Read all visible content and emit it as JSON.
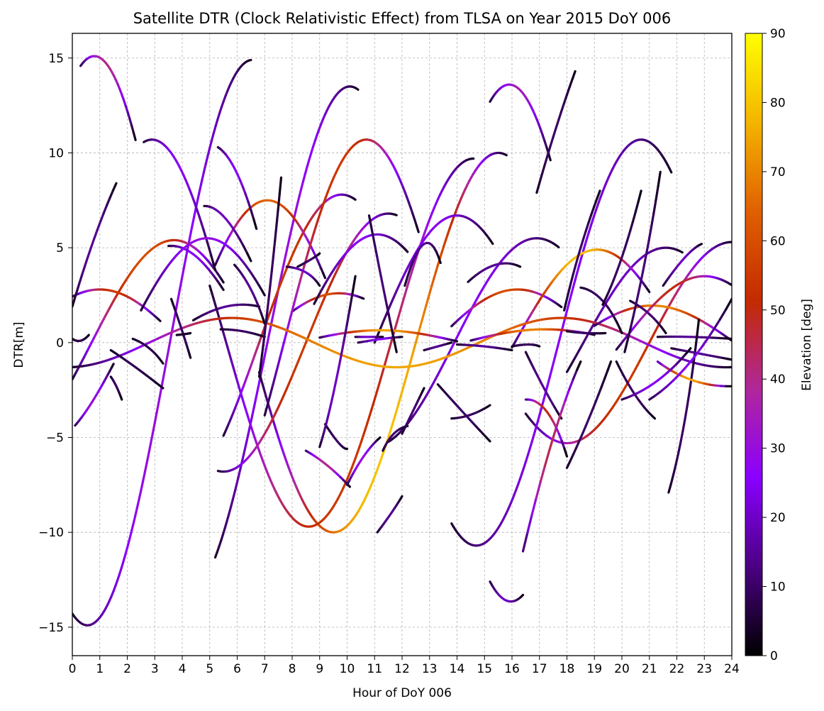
{
  "chart_data": {
    "type": "scatter",
    "title": "Satellite DTR (Clock Relativistic Effect) from TLSA on Year 2015 DoY 006",
    "xlabel": "Hour of DoY 006",
    "ylabel": "DTR[m]",
    "xlim": [
      0,
      24
    ],
    "ylim": [
      -16.5,
      16.3
    ],
    "xticks": [
      0,
      1,
      2,
      3,
      4,
      5,
      6,
      7,
      8,
      9,
      10,
      11,
      12,
      13,
      14,
      15,
      16,
      17,
      18,
      19,
      20,
      21,
      22,
      23,
      24
    ],
    "yticks": [
      -15,
      -10,
      -5,
      0,
      5,
      10,
      15
    ],
    "ytick_labels": [
      "−15",
      "−10",
      "−5",
      "0",
      "5",
      "10",
      "15"
    ],
    "grid": true,
    "colorbar": {
      "label": "Elevation [deg]",
      "range": [
        0,
        90
      ],
      "ticks": [
        0,
        10,
        20,
        30,
        40,
        50,
        60,
        70,
        80,
        90
      ],
      "colormap": "gnuplot",
      "stops": [
        "#000000",
        "#4b0082",
        "#8a00ff",
        "#b0279a",
        "#c42a00",
        "#e06000",
        "#f4b400",
        "#ffff00"
      ]
    },
    "tracks": [
      {
        "amp": 5.4,
        "t0": 4.9,
        "h": 0.0,
        "span": [
          0.1,
          1.5
        ],
        "emax": 30
      },
      {
        "amp": 14.9,
        "t0": 6.55,
        "h": 0.0,
        "span": [
          0.0,
          6.5
        ],
        "emax": 30
      },
      {
        "amp": 2.0,
        "t0": 6.2,
        "h": 0.0,
        "span": [
          4.4,
          6.8
        ],
        "emax": 15
      },
      {
        "amp": 13.5,
        "t0": 10.1,
        "h": 0.0,
        "span": [
          5.2,
          10.4
        ],
        "emax": 30
      },
      {
        "amp": 10.0,
        "t0": 15.5,
        "h": 0.0,
        "span": [
          6.8,
          15.8
        ],
        "emax": 80
      },
      {
        "amp": 9.7,
        "t0": 14.6,
        "h": 0.0,
        "span": [
          5.0,
          14.6
        ],
        "emax": 55
      },
      {
        "amp": 6.8,
        "t0": 11.5,
        "h": 0.0,
        "span": [
          5.3,
          11.8
        ],
        "emax": 55
      },
      {
        "amp": 6.7,
        "t0": 14.0,
        "h": 0.0,
        "span": [
          11.0,
          15.3
        ],
        "emax": 25
      },
      {
        "amp": 5.5,
        "t0": 16.9,
        "h": 0.0,
        "span": [
          11.5,
          17.7
        ],
        "emax": 25
      },
      {
        "amp": 5.3,
        "t0": 24.0,
        "h": 0.0,
        "span": [
          16.5,
          24.0
        ],
        "emax": 55
      },
      {
        "amp": 10.7,
        "t0": 20.7,
        "h": 0.0,
        "span": [
          13.8,
          21.8
        ],
        "emax": 25
      },
      {
        "amp": 5.0,
        "t0": 21.6,
        "h": 0.0,
        "span": [
          18.0,
          22.2
        ],
        "emax": 20
      },
      {
        "amp": 2.6,
        "t0": 9.7,
        "h": 0.0,
        "span": [
          8.0,
          10.6
        ],
        "emax": 60
      },
      {
        "amp": 7.8,
        "t0": 9.8,
        "h": 0.0,
        "span": [
          5.5,
          10.3
        ],
        "emax": 55
      },
      {
        "amp": 5.4,
        "t0": 3.7,
        "h": 0.0,
        "span": [
          0.0,
          5.5
        ],
        "emax": 60
      },
      {
        "amp": 2.8,
        "t0": 1.0,
        "h": 0.0,
        "span": [
          0.0,
          3.2
        ],
        "emax": 55
      },
      {
        "amp": 7.5,
        "t0": 7.1,
        "h": 0.0,
        "span": [
          5.2,
          9.2
        ],
        "emax": 65
      },
      {
        "amp": 5.7,
        "t0": 11.1,
        "h": 0.0,
        "span": [
          8.8,
          12.2
        ],
        "emax": 25
      },
      {
        "amp": 10.7,
        "t0": 10.7,
        "h": 0.0,
        "span": [
          7.0,
          12.6
        ],
        "emax": 55
      },
      {
        "amp": 13.6,
        "t0": 15.9,
        "h": 0.0,
        "span": [
          15.2,
          17.4
        ],
        "emax": 35
      },
      {
        "amp": 2.8,
        "t0": 16.2,
        "h": 0.0,
        "span": [
          13.8,
          17.8
        ],
        "emax": 60
      },
      {
        "amp": 4.9,
        "t0": 19.1,
        "h": 0.0,
        "span": [
          16.0,
          21.0
        ],
        "emax": 80
      },
      {
        "amp": 15.1,
        "t0": 0.8,
        "h": 0.0,
        "span": [
          0.3,
          2.3
        ],
        "emax": 40
      },
      {
        "amp": 10.7,
        "t0": 2.9,
        "h": 0.0,
        "span": [
          2.6,
          5.2
        ],
        "emax": 25
      },
      {
        "amp": 5.1,
        "t0": 3.6,
        "h": 0.0,
        "span": [
          3.5,
          5.5
        ],
        "emax": 25
      },
      {
        "amp": 1.3,
        "t0": 5.8,
        "h": 0.0,
        "span": [
          0.0,
          24.0
        ],
        "emax": 75
      },
      {
        "amp": 0.65,
        "t0": 11.2,
        "h": 0.0,
        "span": [
          9.0,
          14.0
        ],
        "emax": 75
      },
      {
        "amp": 0.7,
        "t0": 17.2,
        "h": 0.0,
        "span": [
          14.5,
          19.0
        ],
        "emax": 70
      },
      {
        "amp": 1.95,
        "t0": 21.1,
        "h": 0.0,
        "span": [
          19.0,
          24.0
        ],
        "emax": 70
      },
      {
        "amp": 3.5,
        "t0": 23.0,
        "h": 0.0,
        "span": [
          19.8,
          24.0
        ],
        "emax": 50
      },
      {
        "amp": 5.5,
        "t0": 4.9,
        "h": 0.0,
        "span": [
          2.5,
          7.0
        ],
        "emax": 30
      }
    ],
    "segments": [
      {
        "x": [
          0.0,
          0.3,
          0.6
        ],
        "y": [
          0.2,
          0.1,
          0.4
        ],
        "e": 8
      },
      {
        "x": [
          0.0,
          0.8,
          1.6
        ],
        "y": [
          1.9,
          5.5,
          8.4
        ],
        "e": 15
      },
      {
        "x": [
          1.4,
          2.3,
          3.3
        ],
        "y": [
          -0.4,
          -1.3,
          -2.4
        ],
        "e": 8
      },
      {
        "x": [
          1.4,
          1.6,
          1.8
        ],
        "y": [
          -1.8,
          -2.3,
          -3.0
        ],
        "e": 10
      },
      {
        "x": [
          2.2,
          2.8,
          3.3
        ],
        "y": [
          0.2,
          -0.3,
          -1.1
        ],
        "e": 8
      },
      {
        "x": [
          3.6,
          4.0,
          4.3
        ],
        "y": [
          2.3,
          0.6,
          -0.8
        ],
        "e": 10
      },
      {
        "x": [
          3.8,
          4.1,
          4.3
        ],
        "y": [
          0.4,
          0.45,
          0.5
        ],
        "e": 5
      },
      {
        "x": [
          4.8,
          5.6,
          6.5
        ],
        "y": [
          7.2,
          6.5,
          4.3
        ],
        "e": 20
      },
      {
        "x": [
          5.3,
          6.0,
          6.7
        ],
        "y": [
          10.3,
          8.9,
          6.0
        ],
        "e": 25
      },
      {
        "x": [
          5.4,
          6.2,
          7.0
        ],
        "y": [
          0.7,
          0.6,
          0.3
        ],
        "e": 10
      },
      {
        "x": [
          5.9,
          6.5,
          7.0
        ],
        "y": [
          4.1,
          2.8,
          1.0
        ],
        "e": 15
      },
      {
        "x": [
          6.8,
          7.2,
          7.6
        ],
        "y": [
          -1.8,
          3.0,
          8.7
        ],
        "e": 10
      },
      {
        "x": [
          8.2,
          8.7,
          9.0
        ],
        "y": [
          4.0,
          4.4,
          4.7
        ],
        "e": 10
      },
      {
        "x": [
          7.8,
          8.5,
          9.0
        ],
        "y": [
          4.0,
          3.7,
          3.0
        ],
        "e": 20
      },
      {
        "x": [
          9.2,
          9.7,
          10.0
        ],
        "y": [
          -4.3,
          -5.3,
          -5.6
        ],
        "e": 10
      },
      {
        "x": [
          9.0,
          9.6,
          10.3
        ],
        "y": [
          -5.5,
          -2.0,
          3.5
        ],
        "e": 20
      },
      {
        "x": [
          10.3,
          10.8,
          11.3
        ],
        "y": [
          0.3,
          0.3,
          0.3
        ],
        "e": 22
      },
      {
        "x": [
          10.4,
          11.3,
          12.0
        ],
        "y": [
          0.0,
          0.2,
          0.3
        ],
        "e": 25
      },
      {
        "x": [
          10.8,
          11.3,
          11.8
        ],
        "y": [
          6.7,
          3.0,
          -0.5
        ],
        "e": 12
      },
      {
        "x": [
          11.3,
          11.7,
          12.2
        ],
        "y": [
          -5.7,
          -4.8,
          -4.4
        ],
        "e": 12
      },
      {
        "x": [
          11.1,
          11.6,
          12.0
        ],
        "y": [
          -10.0,
          -9.0,
          -8.1
        ],
        "e": 15
      },
      {
        "x": [
          12.0,
          12.4,
          12.8
        ],
        "y": [
          -4.8,
          -3.6,
          -2.4
        ],
        "e": 12
      },
      {
        "x": [
          12.1,
          12.8,
          13.4
        ],
        "y": [
          3.0,
          5.2,
          4.2
        ],
        "e": 15
      },
      {
        "x": [
          12.8,
          13.3,
          13.8
        ],
        "y": [
          -0.4,
          -0.2,
          0.0
        ],
        "e": 15
      },
      {
        "x": [
          13.3,
          14.3,
          15.2
        ],
        "y": [
          -2.2,
          -3.8,
          -5.2
        ],
        "e": 10
      },
      {
        "x": [
          13.8,
          14.5,
          15.2
        ],
        "y": [
          -4.0,
          -3.8,
          -3.3
        ],
        "e": 10
      },
      {
        "x": [
          14.4,
          15.4,
          16.3
        ],
        "y": [
          3.2,
          4.1,
          4.0
        ],
        "e": 15
      },
      {
        "x": [
          14.0,
          15.0,
          16.0
        ],
        "y": [
          -0.1,
          -0.2,
          -0.4
        ],
        "e": 15
      },
      {
        "x": [
          15.2,
          15.8,
          16.4
        ],
        "y": [
          -12.6,
          -13.6,
          -13.3
        ],
        "e": 20
      },
      {
        "x": [
          16.0,
          16.6,
          17.0
        ],
        "y": [
          -0.2,
          -0.1,
          -0.2
        ],
        "e": 10
      },
      {
        "x": [
          16.5,
          17.2,
          17.8
        ],
        "y": [
          -0.5,
          -2.5,
          -4.0
        ],
        "e": 15
      },
      {
        "x": [
          16.9,
          17.6,
          18.3
        ],
        "y": [
          7.9,
          11.3,
          14.3
        ],
        "e": 10
      },
      {
        "x": [
          17.9,
          18.5,
          19.2
        ],
        "y": [
          1.7,
          5.0,
          8.0
        ],
        "e": 10
      },
      {
        "x": [
          18.0,
          18.7,
          19.4
        ],
        "y": [
          0.6,
          0.5,
          0.5
        ],
        "e": 10
      },
      {
        "x": [
          18.0,
          18.8,
          19.6
        ],
        "y": [
          -6.6,
          -4.0,
          -1.0
        ],
        "e": 10
      },
      {
        "x": [
          18.5,
          19.3,
          20.0
        ],
        "y": [
          2.9,
          2.2,
          0.5
        ],
        "e": 10
      },
      {
        "x": [
          19.3,
          20.0,
          20.7
        ],
        "y": [
          2.0,
          4.5,
          8.0
        ],
        "e": 10
      },
      {
        "x": [
          19.8,
          20.5,
          21.2
        ],
        "y": [
          -1.0,
          -2.8,
          -4.0
        ],
        "e": 10
      },
      {
        "x": [
          20.3,
          21.0,
          21.6
        ],
        "y": [
          2.2,
          1.5,
          0.5
        ],
        "e": 12
      },
      {
        "x": [
          20.1,
          20.8,
          21.4
        ],
        "y": [
          -0.5,
          4.0,
          9.0
        ],
        "e": 12
      },
      {
        "x": [
          21.3,
          22.5,
          24.0
        ],
        "y": [
          0.3,
          0.3,
          0.2
        ],
        "e": 15
      },
      {
        "x": [
          21.7,
          22.3,
          22.8
        ],
        "y": [
          -7.9,
          -4.0,
          1.2
        ],
        "e": 10
      },
      {
        "x": [
          21.8,
          22.9,
          24.0
        ],
        "y": [
          -0.3,
          -0.6,
          -0.9
        ],
        "e": 15
      },
      {
        "x": [
          21.5,
          22.3,
          22.9
        ],
        "y": [
          3.0,
          4.5,
          5.2
        ],
        "e": 20
      },
      {
        "x": [
          21.3,
          22.6,
          24.0
        ],
        "y": [
          -1.0,
          -2.0,
          -2.3
        ],
        "e": 75
      },
      {
        "x": [
          21.0,
          22.5,
          24.0
        ],
        "y": [
          -3.0,
          -1.0,
          2.3
        ],
        "e": 25
      },
      {
        "x": [
          20.0,
          21.3,
          22.5
        ],
        "y": [
          -3.0,
          -2.0,
          -0.3
        ],
        "e": 25
      },
      {
        "x": [
          16.4,
          17.5,
          18.5
        ],
        "y": [
          -11.0,
          -5.0,
          -1.0
        ],
        "e": 45
      },
      {
        "x": [
          16.5,
          17.3,
          18.0
        ],
        "y": [
          -3.0,
          -3.7,
          -6.0
        ],
        "e": 50
      },
      {
        "x": [
          8.5,
          9.3,
          10.1
        ],
        "y": [
          -5.7,
          -6.5,
          -7.6
        ],
        "e": 40
      },
      {
        "x": [
          10.0,
          10.6,
          11.2
        ],
        "y": [
          -7.5,
          -6.0,
          -5.0
        ],
        "e": 30
      }
    ]
  }
}
